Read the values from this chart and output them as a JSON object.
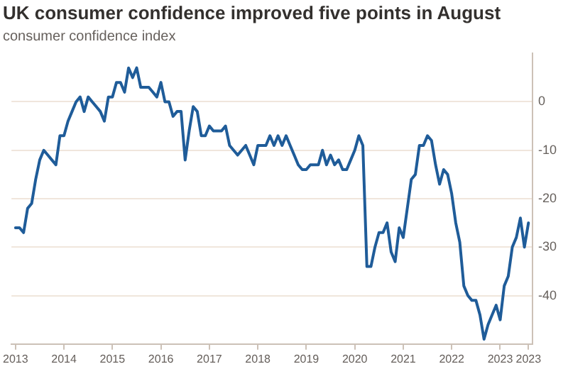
{
  "chart_data": {
    "type": "line",
    "title": "UK consumer confidence improved five points in August",
    "subtitle": "consumer confidence index",
    "x": [
      "2013-01",
      "2013-02",
      "2013-03",
      "2013-04",
      "2013-05",
      "2013-06",
      "2013-07",
      "2013-08",
      "2013-09",
      "2013-10",
      "2013-11",
      "2013-12",
      "2014-01",
      "2014-02",
      "2014-03",
      "2014-04",
      "2014-05",
      "2014-06",
      "2014-07",
      "2014-08",
      "2014-09",
      "2014-10",
      "2014-11",
      "2014-12",
      "2015-01",
      "2015-02",
      "2015-03",
      "2015-04",
      "2015-05",
      "2015-06",
      "2015-07",
      "2015-08",
      "2015-09",
      "2015-10",
      "2015-11",
      "2015-12",
      "2016-01",
      "2016-02",
      "2016-03",
      "2016-04",
      "2016-05",
      "2016-06",
      "2016-07",
      "2016-08",
      "2016-09",
      "2016-10",
      "2016-11",
      "2016-12",
      "2017-01",
      "2017-02",
      "2017-03",
      "2017-04",
      "2017-05",
      "2017-06",
      "2017-07",
      "2017-08",
      "2017-09",
      "2017-10",
      "2017-11",
      "2017-12",
      "2018-01",
      "2018-02",
      "2018-03",
      "2018-04",
      "2018-05",
      "2018-06",
      "2018-07",
      "2018-08",
      "2018-09",
      "2018-10",
      "2018-11",
      "2018-12",
      "2019-01",
      "2019-02",
      "2019-03",
      "2019-04",
      "2019-05",
      "2019-06",
      "2019-07",
      "2019-08",
      "2019-09",
      "2019-10",
      "2019-11",
      "2019-12",
      "2020-01",
      "2020-02",
      "2020-03",
      "2020-04",
      "2020-05",
      "2020-06",
      "2020-07",
      "2020-08",
      "2020-09",
      "2020-10",
      "2020-11",
      "2020-12",
      "2021-01",
      "2021-02",
      "2021-03",
      "2021-04",
      "2021-05",
      "2021-06",
      "2021-07",
      "2021-08",
      "2021-09",
      "2021-10",
      "2021-11",
      "2021-12",
      "2022-01",
      "2022-02",
      "2022-03",
      "2022-04",
      "2022-05",
      "2022-06",
      "2022-07",
      "2022-08",
      "2022-09",
      "2022-10",
      "2022-11",
      "2022-12",
      "2023-01",
      "2023-02",
      "2023-03",
      "2023-04",
      "2023-05",
      "2023-06",
      "2023-07",
      "2023-08"
    ],
    "series": [
      {
        "color": "#1f5c99",
        "values": [
          -26,
          -26,
          -27,
          -22,
          -21,
          -16,
          -12,
          -10,
          -11,
          -12,
          -13,
          -7,
          -7,
          -4,
          -2,
          0,
          1,
          -2,
          1,
          0,
          -1,
          -2,
          -4,
          1,
          1,
          4,
          4,
          2,
          7,
          5,
          7,
          3,
          3,
          3,
          2,
          1,
          4,
          0,
          0,
          -3,
          -2,
          -2,
          -12,
          -6,
          -1,
          -2,
          -7,
          -7,
          -5,
          -6,
          -6,
          -6,
          -5,
          -9,
          -10,
          -11,
          -10,
          -9,
          -11,
          -13,
          -9,
          -9,
          -9,
          -7,
          -9,
          -7,
          -9,
          -7,
          -9,
          -11,
          -13,
          -14,
          -14,
          -13,
          -13,
          -13,
          -10,
          -13,
          -11,
          -13,
          -12,
          -14,
          -14,
          -12,
          -10,
          -7,
          -9,
          -34,
          -34,
          -30,
          -27,
          -27,
          -25,
          -31,
          -33,
          -26,
          -28,
          -22,
          -16,
          -15,
          -9,
          -9,
          -7,
          -8,
          -13,
          -17,
          -14,
          -15,
          -19,
          -25,
          -29,
          -38,
          -40,
          -41,
          -41,
          -44,
          -49,
          -46,
          -44,
          -42,
          -45,
          -38,
          -36,
          -30,
          -28,
          -24,
          -30,
          -25
        ]
      }
    ],
    "xlim": [
      "2012-12",
      "2023-09"
    ],
    "xticks": [
      {
        "value": "2013-01",
        "label": "2013"
      },
      {
        "value": "2014-01",
        "label": "2014"
      },
      {
        "value": "2015-01",
        "label": "2015"
      },
      {
        "value": "2016-01",
        "label": "2016"
      },
      {
        "value": "2017-01",
        "label": "2017"
      },
      {
        "value": "2018-01",
        "label": "2018"
      },
      {
        "value": "2019-01",
        "label": "2019"
      },
      {
        "value": "2020-01",
        "label": "2020"
      },
      {
        "value": "2021-01",
        "label": "2021"
      },
      {
        "value": "2022-01",
        "label": "2022"
      },
      {
        "value": "2023-01",
        "label": "2023"
      },
      {
        "value": "2023-08",
        "label": "2023"
      }
    ],
    "ylim": [
      -50,
      10
    ],
    "yticks": [
      -40,
      -30,
      -20,
      -10,
      0
    ],
    "grid": "y",
    "legend": false,
    "marker": "none",
    "line_style": "solid"
  }
}
